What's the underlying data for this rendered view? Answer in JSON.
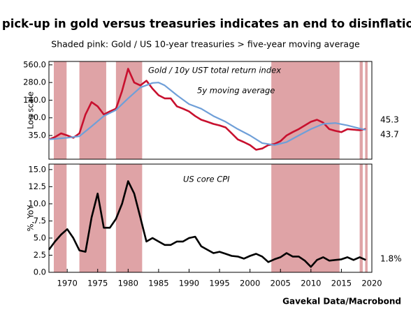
{
  "title": "A pick-up in gold versus treasuries indicates an end to disinflation",
  "subtitle": "Shaded pink: Gold / US 10-year treasuries > five-year moving average",
  "source": "Gavekal Data/Macrobond",
  "chart_data": [
    {
      "type": "line",
      "ylabel": "Log scale",
      "log_scale": true,
      "grid": false,
      "xlim": [
        1967,
        2020
      ],
      "ylim": [
        13.8,
        640
      ],
      "yticks": [
        {
          "value": 35,
          "label": "35.0"
        },
        {
          "value": 70,
          "label": "70.0"
        },
        {
          "value": 140,
          "label": "140.0"
        },
        {
          "value": 280,
          "label": "280.0"
        },
        {
          "value": 560,
          "label": "560.0"
        }
      ],
      "shade_color": "#dfa3a6",
      "shaded_periods": [
        [
          1967.8,
          1969.9
        ],
        [
          1972.0,
          1976.4
        ],
        [
          1978.0,
          1982.3
        ],
        [
          2003.5,
          2014.7
        ],
        [
          2018.0,
          2018.5
        ],
        [
          2018.9,
          2019.3
        ]
      ],
      "series": [
        {
          "name": "Gold / 10y UST total return index",
          "color": "#c8102e",
          "end_label": "45.3",
          "x": [
            1967,
            1968,
            1969,
            1970,
            1971,
            1972,
            1973,
            1974,
            1975,
            1976,
            1977,
            1978,
            1979,
            1980,
            1981,
            1982,
            1983,
            1984,
            1985,
            1986,
            1987,
            1988,
            1989,
            1990,
            1991,
            1992,
            1993,
            1994,
            1995,
            1996,
            1997,
            1998,
            1999,
            2000,
            2001,
            2002,
            2003,
            2004,
            2005,
            2006,
            2007,
            2008,
            2009,
            2010,
            2011,
            2012,
            2013,
            2014,
            2015,
            2016,
            2017,
            2018,
            2019
          ],
          "values": [
            30,
            33,
            38,
            35,
            32,
            38,
            80,
            130,
            110,
            80,
            90,
            100,
            200,
            480,
            280,
            250,
            300,
            220,
            170,
            150,
            150,
            110,
            100,
            90,
            75,
            65,
            60,
            55,
            52,
            48,
            38,
            30,
            27,
            24,
            20,
            21,
            24,
            25,
            28,
            35,
            40,
            45,
            52,
            60,
            65,
            58,
            45,
            42,
            40,
            45,
            44,
            43,
            45.3
          ]
        },
        {
          "name": "5y moving average",
          "color": "#6f9fd8",
          "end_label": "43.7",
          "x": [
            1967,
            1970,
            1972,
            1974,
            1976,
            1978,
            1980,
            1982,
            1984,
            1985,
            1986,
            1988,
            1990,
            1992,
            1994,
            1996,
            1998,
            2000,
            2002,
            2004,
            2006,
            2008,
            2010,
            2012,
            2014,
            2016,
            2018,
            2019
          ],
          "values": [
            30,
            32,
            34,
            50,
            75,
            95,
            150,
            230,
            275,
            280,
            250,
            170,
            120,
            100,
            75,
            60,
            45,
            35,
            26,
            24,
            27,
            35,
            45,
            55,
            57,
            52,
            46,
            43.7
          ]
        }
      ]
    },
    {
      "type": "line",
      "ylabel": "%, YoY",
      "grid": false,
      "xlim": [
        1967,
        2020
      ],
      "ylim": [
        0,
        15.8
      ],
      "xticks": [
        1970,
        1975,
        1980,
        1985,
        1990,
        1995,
        2000,
        2005,
        2010,
        2015,
        2020
      ],
      "yticks": [
        {
          "value": 0,
          "label": "0.0"
        },
        2.5,
        {
          "value": 5,
          "label": "5.0"
        },
        7.5,
        {
          "value": 10,
          "label": "10.0"
        },
        12.5,
        {
          "value": 15,
          "label": "15.0"
        }
      ],
      "shade_color": "#dfa3a6",
      "shaded_periods": [
        [
          1967.8,
          1969.9
        ],
        [
          1972.0,
          1976.4
        ],
        [
          1978.0,
          1982.3
        ],
        [
          2003.5,
          2014.7
        ],
        [
          2018.0,
          2018.5
        ],
        [
          2018.9,
          2019.3
        ]
      ],
      "series": [
        {
          "name": "US core CPI",
          "color": "#000000",
          "end_label": "1.8%",
          "x": [
            1967,
            1968,
            1969,
            1970,
            1971,
            1972,
            1973,
            1974,
            1975,
            1976,
            1977,
            1978,
            1979,
            1980,
            1981,
            1982,
            1983,
            1984,
            1985,
            1986,
            1987,
            1988,
            1989,
            1990,
            1991,
            1992,
            1993,
            1994,
            1995,
            1996,
            1997,
            1998,
            1999,
            2000,
            2001,
            2002,
            2003,
            2004,
            2005,
            2006,
            2007,
            2008,
            2009,
            2010,
            2011,
            2012,
            2013,
            2014,
            2015,
            2016,
            2017,
            2018,
            2019
          ],
          "values": [
            3.3,
            4.5,
            5.5,
            6.3,
            5.0,
            3.2,
            3.0,
            8.0,
            11.5,
            6.5,
            6.5,
            7.8,
            10.0,
            13.3,
            11.5,
            8.0,
            4.5,
            5.0,
            4.5,
            4.0,
            4.0,
            4.5,
            4.5,
            5.0,
            5.2,
            3.8,
            3.3,
            2.8,
            3.0,
            2.7,
            2.4,
            2.3,
            2.0,
            2.4,
            2.7,
            2.3,
            1.5,
            1.9,
            2.2,
            2.8,
            2.3,
            2.3,
            1.7,
            0.8,
            1.8,
            2.2,
            1.7,
            1.8,
            1.9,
            2.2,
            1.8,
            2.2,
            1.8
          ]
        }
      ]
    }
  ]
}
